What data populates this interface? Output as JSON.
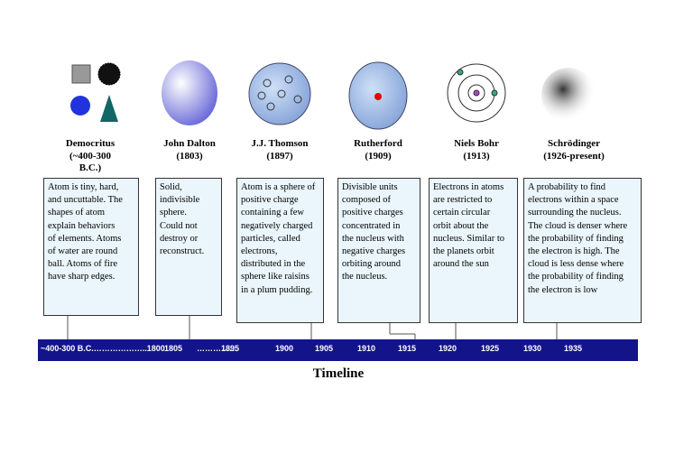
{
  "models": [
    {
      "name": "Democritus",
      "date": "(~400-300 B.C.)",
      "description": [
        "Atom is tiny, hard,",
        "and uncuttable. The",
        "shapes of atom",
        "explain behaviors",
        "of elements. Atoms",
        "of water are round",
        "ball. Atoms of fire",
        "have sharp edges."
      ]
    },
    {
      "name": "John Dalton",
      "date": "(1803)",
      "description": [
        "Solid,",
        "indivisible",
        "sphere.",
        "Could not",
        "destroy or",
        "reconstruct."
      ]
    },
    {
      "name": "J.J. Thomson",
      "date": "(1897)",
      "description": [
        "Atom is a sphere of",
        "positive charge",
        "containing a few",
        "negatively charged",
        "particles, called",
        "electrons,",
        "distributed in the",
        "sphere like raisins",
        "in a plum pudding."
      ]
    },
    {
      "name": "Rutherford",
      "date": "(1909)",
      "description": [
        "Divisible units",
        "composed of",
        "positive charges",
        "concentrated in",
        "the nucleus with",
        "negative charges",
        "orbiting around",
        "the nucleus."
      ]
    },
    {
      "name": "Niels Bohr",
      "date": "(1913)",
      "description": [
        "Electrons in atoms",
        "are restricted to",
        "certain circular",
        "orbit about the",
        "nucleus. Similar to",
        "the planets orbit",
        "around the sun"
      ]
    },
    {
      "name": "Schrödinger",
      "date": "(1926-present)",
      "description": [
        "A probability to find",
        "electrons within a space",
        "surrounding the nucleus.",
        "The cloud is denser where",
        "the probability of finding",
        "the electron is high. The",
        "cloud is less dense where",
        "the probability of finding",
        "the electron is low"
      ]
    }
  ],
  "timeline": {
    "labels": [
      "~400-300 B.C.………………..1800",
      "1805",
      "……………",
      "1895",
      "1900",
      "1905",
      "1910",
      "1915",
      "1920",
      "1925",
      "1930",
      "1935"
    ],
    "title": "Timeline"
  }
}
